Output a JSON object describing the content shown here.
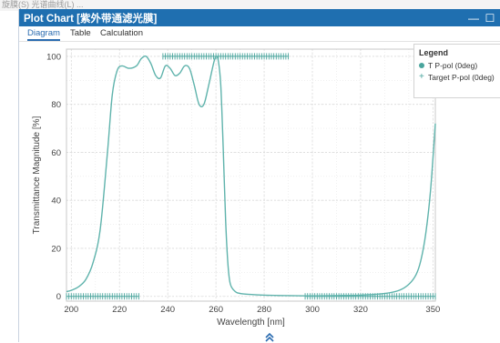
{
  "window": {
    "title": "Plot Chart [紫外带通滤光膜]",
    "minimize_glyph": "—",
    "maximize_glyph": "☐"
  },
  "tabs": [
    {
      "label": "Diagram",
      "active": true
    },
    {
      "label": "Table",
      "active": false
    },
    {
      "label": "Calculation",
      "active": false
    }
  ],
  "background_text": "旋膜(S)  光谱曲线(L)  ...",
  "legend": {
    "title": "Legend",
    "items": [
      {
        "label": "T P-pol (0deg)",
        "marker": "dot-icon"
      },
      {
        "label": "Target P-pol (0deg)",
        "marker": "plus-icon"
      }
    ]
  },
  "colors": {
    "titlebar": "#1f6fb0",
    "curve": "#5fb3ac",
    "target": "#4aa59d",
    "active_tab": "#2b6cb0"
  },
  "chart_data": {
    "type": "line",
    "xlabel": "Wavelength [nm]",
    "ylabel": "Transmittance Magnitude [%]",
    "xlim": [
      198,
      351
    ],
    "ylim": [
      -2,
      103
    ],
    "xticks": [
      200,
      220,
      240,
      260,
      280,
      300,
      320,
      350
    ],
    "yticks": [
      0,
      20,
      40,
      60,
      80,
      100
    ],
    "grid": true,
    "legend_position": "top-right",
    "series": [
      {
        "name": "T P-pol (0deg)",
        "x": [
          198,
          200,
          203,
          206,
          209,
          212,
          215,
          217,
          219,
          221,
          224,
          227,
          229,
          231,
          233,
          235,
          237,
          239,
          241,
          243,
          245,
          247,
          249,
          251,
          253,
          255,
          257,
          259,
          260,
          261,
          262,
          263,
          264,
          265,
          266,
          268,
          270,
          274,
          280,
          290,
          300,
          310,
          320,
          330,
          336,
          340,
          343,
          345,
          347,
          349,
          351
        ],
        "y": [
          2,
          2.5,
          4,
          7,
          14,
          28,
          60,
          84,
          94,
          96,
          95,
          96,
          99,
          100,
          97,
          92,
          91,
          96,
          95,
          92,
          93,
          96,
          95,
          88,
          80,
          80,
          88,
          97,
          100,
          98,
          88,
          62,
          32,
          13,
          5,
          2,
          1.2,
          0.8,
          0.5,
          0.3,
          0.2,
          0.3,
          0.5,
          1.2,
          2.5,
          5,
          9,
          15,
          26,
          44,
          72
        ]
      },
      {
        "name": "Target P-pol (0deg)",
        "segments": [
          {
            "x_start": 196,
            "x_end": 228,
            "value": 0
          },
          {
            "x_start": 238,
            "x_end": 290,
            "value": 100
          },
          {
            "x_start": 297,
            "x_end": 351,
            "value": 0
          }
        ]
      }
    ]
  }
}
